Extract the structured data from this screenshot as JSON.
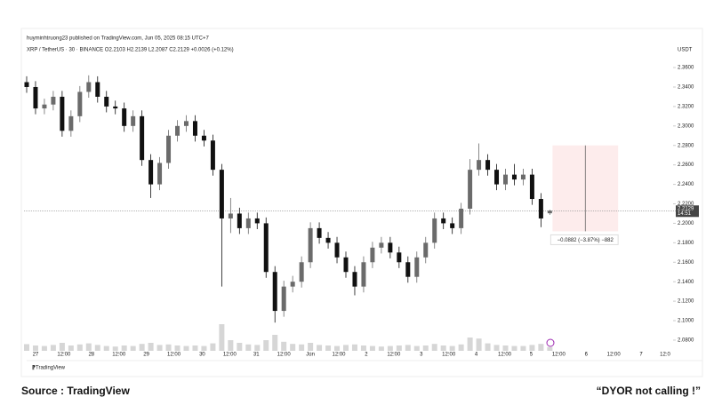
{
  "header": {
    "byline": "huyminhtruong23 published on TradingView.com, Jun 05, 2025 08:15 UTC+7",
    "legend": "XRP / TetherUS · 30 · BINANCE  O2.2103  H2.2139  L2.2087  C2.2129  +0.0026 (+0.12%)"
  },
  "chart_data": {
    "type": "candlestick",
    "currency": "USDT",
    "open": [
      2.345,
      2.34,
      2.318,
      2.322,
      2.33,
      2.295,
      2.31,
      2.335,
      2.345,
      2.33,
      2.32,
      2.318,
      2.3,
      2.31,
      2.265,
      2.24,
      2.262,
      2.29,
      2.3,
      2.305,
      2.29,
      2.285,
      2.255,
      2.205,
      2.21,
      2.195,
      2.205,
      2.2,
      2.15,
      2.11,
      2.135,
      2.14,
      2.16,
      2.195,
      2.185,
      2.18,
      2.165,
      2.15,
      2.135,
      2.16,
      2.175,
      2.18,
      2.17,
      2.16,
      2.145,
      2.165,
      2.18,
      2.205,
      2.2,
      2.195,
      2.215,
      2.255,
      2.265,
      2.255,
      2.24,
      2.25,
      2.245,
      2.25,
      2.225,
      2.2103
    ],
    "high": [
      2.351,
      2.346,
      2.328,
      2.336,
      2.336,
      2.316,
      2.341,
      2.352,
      2.351,
      2.336,
      2.326,
      2.324,
      2.316,
      2.316,
      2.271,
      2.268,
      2.296,
      2.306,
      2.311,
      2.311,
      2.296,
      2.291,
      2.261,
      2.226,
      2.216,
      2.211,
      2.211,
      2.206,
      2.156,
      2.141,
      2.146,
      2.166,
      2.201,
      2.201,
      2.191,
      2.186,
      2.171,
      2.156,
      2.166,
      2.181,
      2.186,
      2.186,
      2.176,
      2.166,
      2.171,
      2.186,
      2.211,
      2.211,
      2.206,
      2.221,
      2.266,
      2.282,
      2.271,
      2.261,
      2.256,
      2.261,
      2.256,
      2.256,
      2.231,
      2.2139
    ],
    "low": [
      2.334,
      2.312,
      2.312,
      2.316,
      2.289,
      2.289,
      2.304,
      2.329,
      2.324,
      2.314,
      2.312,
      2.294,
      2.294,
      2.259,
      2.226,
      2.234,
      2.256,
      2.284,
      2.294,
      2.284,
      2.279,
      2.249,
      2.135,
      2.19,
      2.189,
      2.189,
      2.194,
      2.144,
      2.098,
      2.104,
      2.129,
      2.134,
      2.154,
      2.179,
      2.174,
      2.159,
      2.144,
      2.126,
      2.129,
      2.154,
      2.169,
      2.164,
      2.154,
      2.139,
      2.139,
      2.159,
      2.174,
      2.194,
      2.189,
      2.189,
      2.209,
      2.249,
      2.249,
      2.234,
      2.234,
      2.239,
      2.239,
      2.219,
      2.196,
      2.2087
    ],
    "close": [
      2.34,
      2.318,
      2.322,
      2.33,
      2.295,
      2.31,
      2.335,
      2.345,
      2.33,
      2.32,
      2.318,
      2.3,
      2.31,
      2.265,
      2.24,
      2.262,
      2.29,
      2.3,
      2.305,
      2.29,
      2.285,
      2.255,
      2.205,
      2.21,
      2.195,
      2.205,
      2.2,
      2.15,
      2.11,
      2.135,
      2.14,
      2.16,
      2.195,
      2.185,
      2.18,
      2.165,
      2.15,
      2.135,
      2.16,
      2.175,
      2.18,
      2.17,
      2.16,
      2.145,
      2.165,
      2.18,
      2.205,
      2.2,
      2.195,
      2.215,
      2.255,
      2.265,
      2.255,
      2.24,
      2.25,
      2.245,
      2.25,
      2.225,
      2.205,
      2.2129
    ],
    "volume": [
      25,
      20,
      18,
      22,
      30,
      20,
      24,
      28,
      22,
      18,
      16,
      20,
      18,
      26,
      30,
      22,
      24,
      20,
      18,
      20,
      18,
      28,
      100,
      40,
      30,
      24,
      22,
      40,
      60,
      34,
      26,
      24,
      30,
      22,
      20,
      18,
      22,
      24,
      20,
      18,
      16,
      18,
      20,
      22,
      18,
      20,
      26,
      20,
      18,
      24,
      50,
      46,
      28,
      22,
      20,
      18,
      18,
      22,
      26,
      14
    ],
    "up_color": "#6b6b6b",
    "down_color": "#111111",
    "ylim": [
      2.069,
      2.371
    ],
    "yticks": [
      {
        "value": 2.08,
        "label": "2.0800"
      },
      {
        "value": 2.1,
        "label": "2.1000"
      },
      {
        "value": 2.12,
        "label": "2.1200"
      },
      {
        "value": 2.14,
        "label": "2.1400"
      },
      {
        "value": 2.16,
        "label": "2.1600"
      },
      {
        "value": 2.18,
        "label": "2.1800"
      },
      {
        "value": 2.2,
        "label": "2.2000"
      },
      {
        "value": 2.22,
        "label": "2.2200"
      },
      {
        "value": 2.24,
        "label": "2.2400"
      },
      {
        "value": 2.26,
        "label": "2.2600"
      },
      {
        "value": 2.28,
        "label": "2.2800"
      },
      {
        "value": 2.3,
        "label": "2.3000"
      },
      {
        "value": 2.32,
        "label": "2.3200"
      },
      {
        "value": 2.34,
        "label": "2.3400"
      },
      {
        "value": 2.36,
        "label": "2.3600"
      }
    ],
    "xlim": [
      -0.3,
      72.2
    ],
    "xticks": [
      {
        "value": 1.0,
        "label": "27"
      },
      {
        "value": 4.2,
        "label": "12:00"
      },
      {
        "value": 7.3,
        "label": "28"
      },
      {
        "value": 10.4,
        "label": "12:00"
      },
      {
        "value": 13.5,
        "label": "29"
      },
      {
        "value": 16.6,
        "label": "12:00"
      },
      {
        "value": 19.8,
        "label": "30"
      },
      {
        "value": 22.9,
        "label": "12:00"
      },
      {
        "value": 25.9,
        "label": "31"
      },
      {
        "value": 29.0,
        "label": "12:00"
      },
      {
        "value": 32.0,
        "label": "Jun"
      },
      {
        "value": 35.2,
        "label": "12:00"
      },
      {
        "value": 38.3,
        "label": "2"
      },
      {
        "value": 41.4,
        "label": "12:00"
      },
      {
        "value": 44.5,
        "label": "3"
      },
      {
        "value": 47.6,
        "label": "12:00"
      },
      {
        "value": 50.7,
        "label": "4"
      },
      {
        "value": 53.9,
        "label": "12:00"
      },
      {
        "value": 56.9,
        "label": "5"
      },
      {
        "value": 60.0,
        "label": "12:00"
      },
      {
        "value": 63.1,
        "label": "6"
      },
      {
        "value": 66.2,
        "label": "12:00"
      },
      {
        "value": 69.3,
        "label": "7"
      },
      {
        "value": 72.0,
        "label": "12:0"
      }
    ],
    "last_price": 2.2129,
    "countdown": "14:51",
    "measure": {
      "from": 2.28,
      "to": 2.1918,
      "x_start": 59.3,
      "x_end": 66.7,
      "label": "−0.0882 (−3.87%) −882"
    }
  },
  "logo": "TradingView",
  "footer": {
    "source": "Source : TradingView",
    "quote": "“DYOR  not calling !”"
  }
}
